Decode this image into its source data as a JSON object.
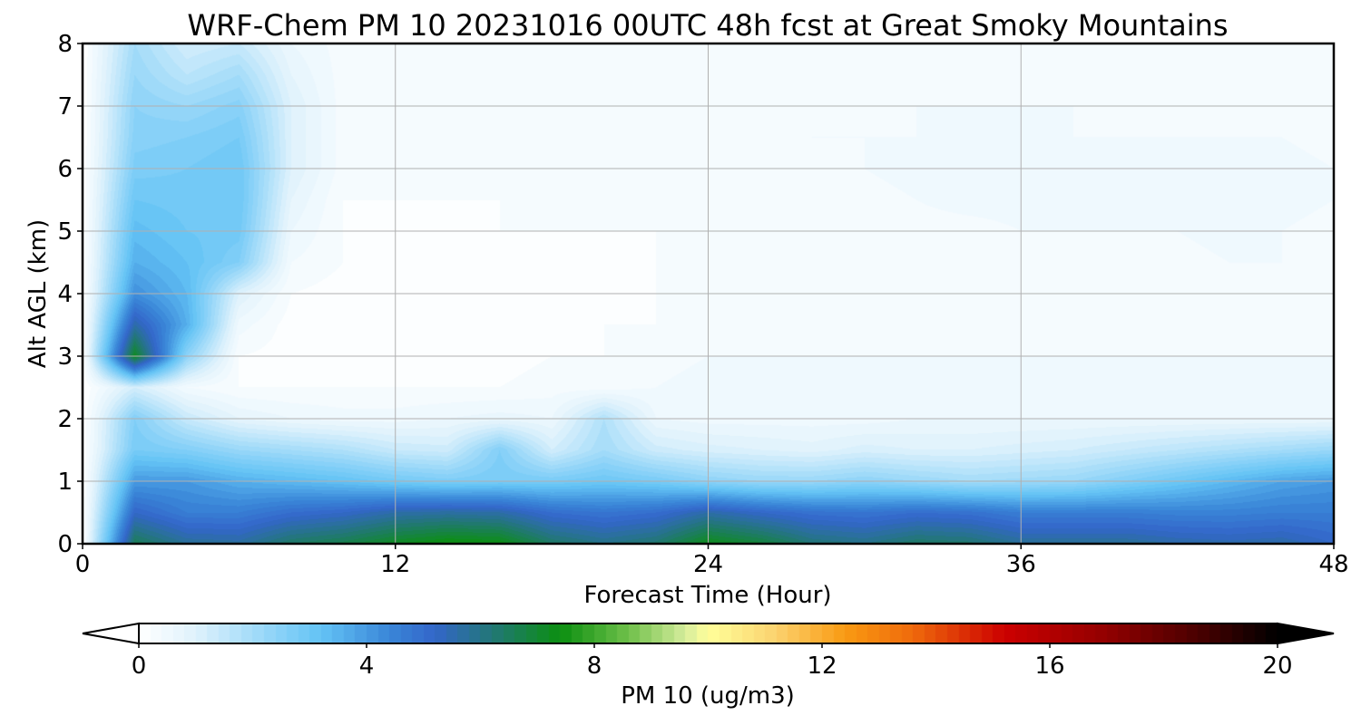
{
  "chart_data": {
    "type": "heatmap",
    "subtype": "filled-contour",
    "title": "WRF-Chem PM 10  20231016 00UTC 48h fcst at Great Smoky Mountains",
    "xlabel": "Forecast Time (Hour)",
    "ylabel": "Alt AGL (km)",
    "xlim": [
      0,
      48
    ],
    "ylim": [
      0,
      8
    ],
    "xticks": [
      0,
      12,
      24,
      36,
      48
    ],
    "yticks": [
      0,
      1,
      2,
      3,
      4,
      5,
      6,
      7,
      8
    ],
    "grid": true,
    "x_hours": [
      0,
      2,
      4,
      6,
      8,
      10,
      12,
      14,
      16,
      18,
      20,
      22,
      24,
      26,
      28,
      30,
      32,
      34,
      36,
      38,
      40,
      42,
      44,
      46,
      48
    ],
    "y_km": [
      0,
      0.5,
      1.0,
      1.5,
      2.0,
      2.5,
      3.0,
      3.5,
      4.0,
      4.5,
      5.0,
      5.5,
      6.0,
      6.5,
      7.0,
      7.5,
      8.0
    ],
    "values": [
      [
        0.0,
        6.6,
        5.8,
        5.7,
        6.4,
        6.7,
        7.2,
        7.5,
        7.4,
        6.4,
        6.0,
        6.3,
        7.3,
        6.9,
        6.2,
        6.0,
        6.4,
        6.3,
        5.8,
        5.8,
        5.8,
        5.6,
        5.5,
        5.6,
        5.2
      ],
      [
        0.0,
        5.2,
        4.6,
        4.6,
        5.0,
        5.2,
        5.6,
        5.7,
        5.6,
        5.0,
        4.8,
        5.0,
        5.6,
        5.2,
        4.9,
        4.8,
        5.0,
        4.9,
        4.6,
        4.6,
        4.6,
        4.5,
        4.5,
        4.6,
        4.6
      ],
      [
        0.0,
        4.0,
        4.0,
        3.6,
        3.4,
        3.2,
        2.9,
        2.7,
        2.8,
        2.8,
        3.0,
        2.8,
        2.4,
        2.2,
        2.2,
        2.4,
        2.2,
        2.0,
        2.1,
        2.2,
        2.6,
        3.0,
        3.4,
        3.8,
        4.0
      ],
      [
        0.0,
        2.8,
        2.6,
        2.2,
        2.0,
        1.8,
        1.4,
        1.3,
        2.6,
        1.2,
        2.0,
        1.3,
        1.1,
        1.0,
        0.9,
        1.1,
        1.0,
        1.0,
        1.1,
        1.2,
        1.4,
        1.6,
        1.8,
        2.0,
        2.2
      ],
      [
        0.0,
        2.6,
        1.4,
        0.8,
        0.6,
        0.5,
        0.5,
        0.6,
        0.7,
        0.6,
        1.8,
        0.6,
        0.5,
        0.5,
        0.5,
        0.5,
        0.6,
        0.6,
        0.6,
        0.6,
        0.6,
        0.6,
        0.6,
        0.6,
        0.6
      ],
      [
        0.0,
        1.2,
        0.4,
        0.2,
        0.2,
        0.2,
        0.2,
        0.2,
        0.2,
        0.3,
        0.3,
        0.4,
        0.5,
        0.5,
        0.5,
        0.5,
        0.5,
        0.5,
        0.5,
        0.5,
        0.5,
        0.5,
        0.5,
        0.5,
        0.5
      ],
      [
        0.0,
        7.2,
        2.4,
        0.2,
        0.1,
        0.1,
        0.1,
        0.1,
        0.1,
        0.2,
        0.2,
        0.3,
        0.4,
        0.4,
        0.4,
        0.4,
        0.4,
        0.4,
        0.4,
        0.4,
        0.4,
        0.4,
        0.4,
        0.4,
        0.4
      ],
      [
        0.0,
        5.6,
        3.6,
        0.5,
        0.1,
        0.1,
        0.1,
        0.1,
        0.1,
        0.1,
        0.2,
        0.2,
        0.3,
        0.3,
        0.3,
        0.3,
        0.3,
        0.3,
        0.3,
        0.3,
        0.3,
        0.3,
        0.3,
        0.3,
        0.3
      ],
      [
        0.0,
        4.2,
        3.4,
        1.0,
        0.2,
        0.1,
        0.1,
        0.1,
        0.1,
        0.1,
        0.1,
        0.2,
        0.2,
        0.2,
        0.2,
        0.2,
        0.3,
        0.3,
        0.3,
        0.3,
        0.3,
        0.3,
        0.3,
        0.4,
        0.3
      ],
      [
        0.0,
        3.6,
        3.2,
        2.6,
        0.4,
        0.2,
        0.1,
        0.1,
        0.1,
        0.1,
        0.1,
        0.2,
        0.2,
        0.2,
        0.2,
        0.2,
        0.3,
        0.3,
        0.3,
        0.3,
        0.3,
        0.3,
        0.4,
        0.4,
        0.3
      ],
      [
        0.0,
        3.3,
        3.0,
        2.9,
        0.6,
        0.2,
        0.1,
        0.1,
        0.2,
        0.2,
        0.2,
        0.2,
        0.2,
        0.2,
        0.2,
        0.3,
        0.3,
        0.3,
        0.4,
        0.4,
        0.4,
        0.4,
        0.5,
        0.4,
        0.3
      ],
      [
        0.0,
        3.0,
        2.9,
        3.0,
        0.8,
        0.2,
        0.2,
        0.2,
        0.2,
        0.2,
        0.2,
        0.2,
        0.2,
        0.2,
        0.3,
        0.3,
        0.4,
        0.5,
        0.5,
        0.5,
        0.4,
        0.4,
        0.5,
        0.5,
        0.4
      ],
      [
        0.0,
        2.7,
        2.8,
        3.0,
        1.0,
        0.3,
        0.2,
        0.2,
        0.2,
        0.2,
        0.2,
        0.2,
        0.2,
        0.3,
        0.3,
        0.4,
        0.5,
        0.5,
        0.5,
        0.5,
        0.4,
        0.4,
        0.4,
        0.5,
        0.4
      ],
      [
        0.0,
        2.5,
        2.6,
        2.8,
        1.0,
        0.3,
        0.2,
        0.2,
        0.2,
        0.3,
        0.3,
        0.3,
        0.3,
        0.3,
        0.4,
        0.4,
        0.4,
        0.4,
        0.4,
        0.4,
        0.4,
        0.4,
        0.4,
        0.4,
        0.3
      ],
      [
        0.0,
        2.4,
        2.2,
        2.5,
        1.0,
        0.3,
        0.2,
        0.2,
        0.2,
        0.3,
        0.3,
        0.3,
        0.3,
        0.3,
        0.3,
        0.3,
        0.4,
        0.4,
        0.4,
        0.4,
        0.3,
        0.3,
        0.3,
        0.3,
        0.3
      ],
      [
        0.0,
        2.2,
        1.6,
        2.0,
        0.8,
        0.3,
        0.3,
        0.3,
        0.3,
        0.3,
        0.3,
        0.3,
        0.3,
        0.3,
        0.3,
        0.3,
        0.3,
        0.3,
        0.3,
        0.3,
        0.3,
        0.3,
        0.3,
        0.2,
        0.2
      ],
      [
        0.0,
        2.0,
        1.2,
        1.4,
        0.6,
        0.3,
        0.3,
        0.3,
        0.3,
        0.3,
        0.3,
        0.3,
        0.3,
        0.3,
        0.3,
        0.3,
        0.3,
        0.3,
        0.3,
        0.3,
        0.3,
        0.3,
        0.2,
        0.2,
        0.2
      ]
    ],
    "colorbar": {
      "label": "PM 10  (ug/m3)",
      "min": 0,
      "max": 20,
      "ticks": [
        0,
        4,
        8,
        12,
        16,
        20
      ],
      "extend": "both",
      "placement": "bottom",
      "color_stops": [
        [
          0,
          "#ffffff"
        ],
        [
          1,
          "#dff2fc"
        ],
        [
          2.4,
          "#8dd3f8"
        ],
        [
          3.2,
          "#63c3f5"
        ],
        [
          4.4,
          "#3a86d8"
        ],
        [
          5.2,
          "#3366c9"
        ],
        [
          6.2,
          "#227777"
        ],
        [
          7.4,
          "#0b8f10"
        ],
        [
          8.6,
          "#6fc04a"
        ],
        [
          9.6,
          "#d5ec9c"
        ],
        [
          10,
          "#ffff9a"
        ],
        [
          11.2,
          "#fbd26e"
        ],
        [
          12.4,
          "#f99a12"
        ],
        [
          13.6,
          "#ef6a0c"
        ],
        [
          15.2,
          "#cc0000"
        ],
        [
          17,
          "#920000"
        ],
        [
          18.6,
          "#4a0000"
        ],
        [
          20,
          "#000000"
        ]
      ],
      "under_color": "#ffffff",
      "over_color": "#000000"
    }
  }
}
